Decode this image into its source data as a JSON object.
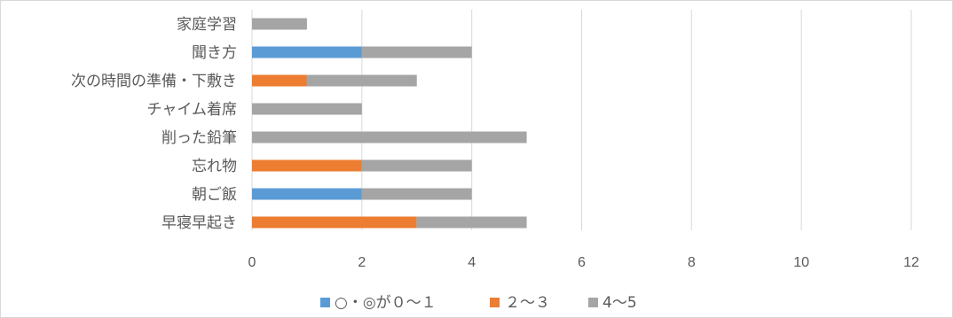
{
  "chart_data": {
    "type": "bar",
    "orientation": "horizontal",
    "stacked": true,
    "title": "",
    "xlabel": "",
    "ylabel": "",
    "categories": [
      "家庭学習",
      "聞き方",
      "次の時間の準備・下敷き",
      "チャイム着席",
      "削った鉛筆",
      "忘れ物",
      "朝ご飯",
      "早寝早起き"
    ],
    "series": [
      {
        "name": "○・◎が０～１",
        "color": "#5b9bd5",
        "values": [
          0,
          2,
          0,
          0,
          0,
          0,
          2,
          0
        ]
      },
      {
        "name": "２～３",
        "color": "#ed7d31",
        "values": [
          0,
          0,
          1,
          0,
          0,
          2,
          0,
          3
        ]
      },
      {
        "name": "4～5",
        "color": "#a5a5a5",
        "values": [
          1,
          2,
          2,
          2,
          5,
          2,
          2,
          2
        ]
      }
    ],
    "xlim": [
      0,
      12
    ],
    "xticks": [
      "0",
      "2",
      "4",
      "6",
      "8",
      "10",
      "12"
    ],
    "grid": true,
    "legend_position": "bottom"
  }
}
